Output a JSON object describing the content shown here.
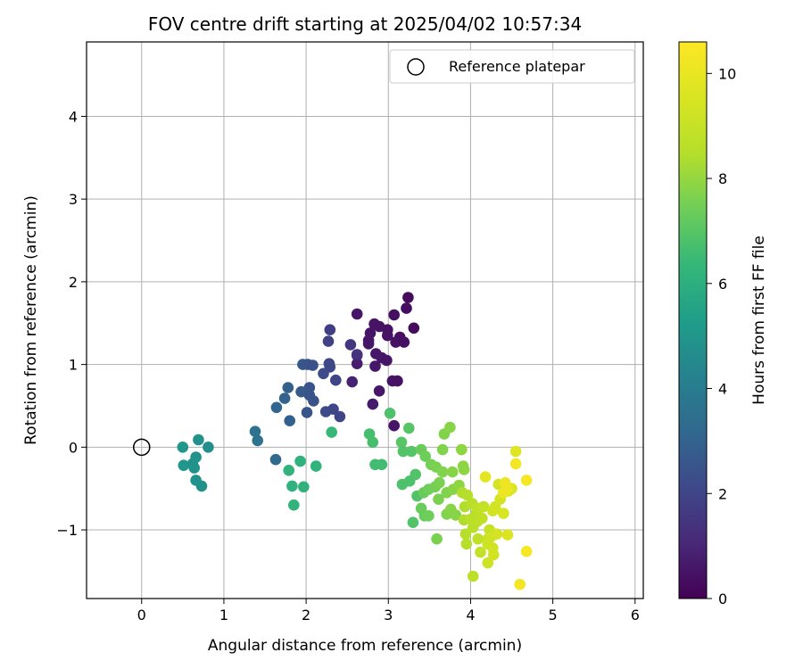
{
  "chart_data": {
    "type": "scatter",
    "title": "FOV centre drift starting at 2025/04/02 10:57:34",
    "xlabel": "Angular distance from reference (arcmin)",
    "ylabel": "Rotation from reference (arcmin)",
    "xlim": [
      -0.67,
      6.1
    ],
    "ylim": [
      -1.83,
      4.9
    ],
    "xticks": [
      0,
      1,
      2,
      3,
      4,
      5,
      6
    ],
    "yticks": [
      -1,
      0,
      1,
      2,
      3,
      4
    ],
    "grid": true,
    "legend": {
      "position": "top-right",
      "entries": [
        "Reference platepar"
      ]
    },
    "reference_point": {
      "label": "Reference platepar",
      "x": 0,
      "y": 0
    },
    "colorbar": {
      "label": "Hours from first FF file",
      "colormap": "viridis",
      "min": 0,
      "max": 10.6,
      "ticks": [
        0,
        2,
        4,
        6,
        8,
        10
      ]
    },
    "series": [
      {
        "points": [
          {
            "x": 3.24,
            "y": 1.81,
            "h": 0.3
          },
          {
            "x": 3.22,
            "y": 1.68,
            "h": 0.35
          },
          {
            "x": 3.07,
            "y": 1.6,
            "h": 0.4
          },
          {
            "x": 2.62,
            "y": 1.61,
            "h": 0.6
          },
          {
            "x": 3.31,
            "y": 1.44,
            "h": 0.3
          },
          {
            "x": 2.83,
            "y": 1.49,
            "h": 0.5
          },
          {
            "x": 2.89,
            "y": 1.46,
            "h": 0.5
          },
          {
            "x": 2.99,
            "y": 1.42,
            "h": 0.45
          },
          {
            "x": 2.78,
            "y": 1.38,
            "h": 0.55
          },
          {
            "x": 2.99,
            "y": 1.35,
            "h": 0.5
          },
          {
            "x": 3.14,
            "y": 1.33,
            "h": 0.4
          },
          {
            "x": 2.76,
            "y": 1.29,
            "h": 0.6
          },
          {
            "x": 3.09,
            "y": 1.27,
            "h": 0.45
          },
          {
            "x": 3.19,
            "y": 1.27,
            "h": 0.4
          },
          {
            "x": 2.85,
            "y": 1.13,
            "h": 0.6
          },
          {
            "x": 2.62,
            "y": 1.11,
            "h": 0.8
          },
          {
            "x": 2.92,
            "y": 1.08,
            "h": 0.6
          },
          {
            "x": 2.98,
            "y": 1.05,
            "h": 0.55
          },
          {
            "x": 2.62,
            "y": 1.01,
            "h": 0.8
          },
          {
            "x": 2.84,
            "y": 0.98,
            "h": 0.6
          },
          {
            "x": 3.05,
            "y": 0.8,
            "h": 0.5
          },
          {
            "x": 3.11,
            "y": 0.8,
            "h": 0.45
          },
          {
            "x": 2.56,
            "y": 0.79,
            "h": 0.9
          },
          {
            "x": 2.89,
            "y": 0.68,
            "h": 0.6
          },
          {
            "x": 2.81,
            "y": 0.52,
            "h": 0.7
          },
          {
            "x": 3.07,
            "y": 0.26,
            "h": 0.55
          },
          {
            "x": 2.76,
            "y": 1.25,
            "h": 0.6
          },
          {
            "x": 2.29,
            "y": 1.42,
            "h": 1.8
          },
          {
            "x": 2.27,
            "y": 1.28,
            "h": 1.9
          },
          {
            "x": 2.54,
            "y": 1.24,
            "h": 1.5
          },
          {
            "x": 2.62,
            "y": 1.12,
            "h": 1.4
          },
          {
            "x": 2.28,
            "y": 1.01,
            "h": 2.1
          },
          {
            "x": 2.29,
            "y": 0.97,
            "h": 2.1
          },
          {
            "x": 2.21,
            "y": 0.89,
            "h": 2.2
          },
          {
            "x": 2.36,
            "y": 0.81,
            "h": 2.0
          },
          {
            "x": 2.04,
            "y": 0.72,
            "h": 2.5
          },
          {
            "x": 1.96,
            "y": 1.0,
            "h": 2.6
          },
          {
            "x": 2.02,
            "y": 1.0,
            "h": 2.5
          },
          {
            "x": 2.08,
            "y": 0.99,
            "h": 2.4
          },
          {
            "x": 1.94,
            "y": 0.67,
            "h": 2.7
          },
          {
            "x": 2.09,
            "y": 0.56,
            "h": 2.4
          },
          {
            "x": 2.24,
            "y": 0.43,
            "h": 2.2
          },
          {
            "x": 2.33,
            "y": 0.46,
            "h": 2.1
          },
          {
            "x": 2.41,
            "y": 0.37,
            "h": 2.0
          },
          {
            "x": 2.01,
            "y": 0.42,
            "h": 2.5
          },
          {
            "x": 1.78,
            "y": 0.72,
            "h": 2.9
          },
          {
            "x": 1.74,
            "y": 0.59,
            "h": 3.0
          },
          {
            "x": 1.64,
            "y": 0.48,
            "h": 3.1
          },
          {
            "x": 1.8,
            "y": 0.32,
            "h": 2.9
          },
          {
            "x": 2.04,
            "y": 0.63,
            "h": 2.5
          },
          {
            "x": 1.38,
            "y": 0.19,
            "h": 3.6
          },
          {
            "x": 1.41,
            "y": 0.08,
            "h": 3.6
          },
          {
            "x": 1.63,
            "y": -0.15,
            "h": 3.3
          },
          {
            "x": 0.69,
            "y": 0.09,
            "h": 4.8
          },
          {
            "x": 0.5,
            "y": 0.0,
            "h": 5.0
          },
          {
            "x": 0.81,
            "y": 0.0,
            "h": 4.7
          },
          {
            "x": 0.66,
            "y": -0.12,
            "h": 4.9
          },
          {
            "x": 0.51,
            "y": -0.22,
            "h": 5.0
          },
          {
            "x": 0.62,
            "y": -0.2,
            "h": 4.9
          },
          {
            "x": 0.64,
            "y": -0.25,
            "h": 4.9
          },
          {
            "x": 0.66,
            "y": -0.4,
            "h": 4.9
          },
          {
            "x": 0.73,
            "y": -0.47,
            "h": 4.8
          },
          {
            "x": 1.79,
            "y": -0.28,
            "h": 6.2
          },
          {
            "x": 1.93,
            "y": -0.17,
            "h": 6.1
          },
          {
            "x": 2.12,
            "y": -0.23,
            "h": 6.2
          },
          {
            "x": 1.83,
            "y": -0.47,
            "h": 6.1
          },
          {
            "x": 1.97,
            "y": -0.48,
            "h": 6.1
          },
          {
            "x": 1.85,
            "y": -0.7,
            "h": 6.2
          },
          {
            "x": 2.31,
            "y": 0.18,
            "h": 6.4
          },
          {
            "x": 3.02,
            "y": 0.41,
            "h": 6.8
          },
          {
            "x": 2.77,
            "y": 0.16,
            "h": 6.7
          },
          {
            "x": 2.81,
            "y": 0.06,
            "h": 6.7
          },
          {
            "x": 2.84,
            "y": -0.21,
            "h": 6.6
          },
          {
            "x": 2.92,
            "y": -0.21,
            "h": 6.6
          },
          {
            "x": 3.25,
            "y": 0.23,
            "h": 7.0
          },
          {
            "x": 3.16,
            "y": 0.06,
            "h": 7.0
          },
          {
            "x": 3.18,
            "y": -0.05,
            "h": 6.9
          },
          {
            "x": 3.28,
            "y": -0.05,
            "h": 7.0
          },
          {
            "x": 3.17,
            "y": -0.45,
            "h": 6.8
          },
          {
            "x": 3.26,
            "y": -0.41,
            "h": 6.8
          },
          {
            "x": 3.33,
            "y": -0.33,
            "h": 6.9
          },
          {
            "x": 3.35,
            "y": -0.59,
            "h": 6.9
          },
          {
            "x": 3.3,
            "y": -0.91,
            "h": 6.9
          },
          {
            "x": 3.4,
            "y": -0.03,
            "h": 7.3
          },
          {
            "x": 3.45,
            "y": -0.11,
            "h": 7.4
          },
          {
            "x": 3.52,
            "y": -0.21,
            "h": 7.5
          },
          {
            "x": 3.58,
            "y": -0.24,
            "h": 7.6
          },
          {
            "x": 3.43,
            "y": -0.55,
            "h": 7.3
          },
          {
            "x": 3.49,
            "y": -0.51,
            "h": 7.4
          },
          {
            "x": 3.57,
            "y": -0.48,
            "h": 7.5
          },
          {
            "x": 3.62,
            "y": -0.43,
            "h": 7.6
          },
          {
            "x": 3.66,
            "y": -0.3,
            "h": 7.7
          },
          {
            "x": 3.68,
            "y": 0.16,
            "h": 7.7
          },
          {
            "x": 3.75,
            "y": 0.24,
            "h": 7.8
          },
          {
            "x": 3.66,
            "y": -0.03,
            "h": 7.7
          },
          {
            "x": 3.89,
            "y": -0.03,
            "h": 7.9
          },
          {
            "x": 3.78,
            "y": -0.3,
            "h": 7.8
          },
          {
            "x": 3.91,
            "y": -0.23,
            "h": 7.9
          },
          {
            "x": 3.92,
            "y": -0.27,
            "h": 7.9
          },
          {
            "x": 3.61,
            "y": -0.63,
            "h": 7.6
          },
          {
            "x": 3.71,
            "y": -0.55,
            "h": 7.7
          },
          {
            "x": 3.79,
            "y": -0.51,
            "h": 7.8
          },
          {
            "x": 3.86,
            "y": -0.46,
            "h": 7.9
          },
          {
            "x": 3.44,
            "y": -0.83,
            "h": 7.3
          },
          {
            "x": 3.49,
            "y": -0.83,
            "h": 7.4
          },
          {
            "x": 3.4,
            "y": -0.74,
            "h": 7.3
          },
          {
            "x": 3.71,
            "y": -0.81,
            "h": 7.7
          },
          {
            "x": 3.76,
            "y": -0.75,
            "h": 7.8
          },
          {
            "x": 3.59,
            "y": -1.11,
            "h": 7.6
          },
          {
            "x": 3.82,
            "y": -0.82,
            "h": 7.8
          },
          {
            "x": 3.9,
            "y": -0.55,
            "h": 8.4
          },
          {
            "x": 3.96,
            "y": -0.58,
            "h": 8.5
          },
          {
            "x": 3.93,
            "y": -0.72,
            "h": 8.4
          },
          {
            "x": 4.02,
            "y": -0.68,
            "h": 8.6
          },
          {
            "x": 3.92,
            "y": -0.88,
            "h": 8.4
          },
          {
            "x": 4.0,
            "y": -0.87,
            "h": 8.6
          },
          {
            "x": 4.07,
            "y": -0.79,
            "h": 8.7
          },
          {
            "x": 4.1,
            "y": -0.74,
            "h": 8.8
          },
          {
            "x": 3.94,
            "y": -1.05,
            "h": 8.5
          },
          {
            "x": 3.95,
            "y": -1.17,
            "h": 8.5
          },
          {
            "x": 4.03,
            "y": -0.97,
            "h": 8.6
          },
          {
            "x": 4.08,
            "y": -0.9,
            "h": 8.7
          },
          {
            "x": 4.14,
            "y": -0.86,
            "h": 8.8
          },
          {
            "x": 4.16,
            "y": -0.72,
            "h": 8.9
          },
          {
            "x": 4.09,
            "y": -1.11,
            "h": 8.8
          },
          {
            "x": 4.12,
            "y": -1.27,
            "h": 8.9
          },
          {
            "x": 4.03,
            "y": -1.56,
            "h": 8.7
          },
          {
            "x": 4.21,
            "y": -1.11,
            "h": 9.0
          },
          {
            "x": 4.23,
            "y": -1.0,
            "h": 9.0
          },
          {
            "x": 4.27,
            "y": -0.77,
            "h": 9.3
          },
          {
            "x": 4.3,
            "y": -0.72,
            "h": 9.3
          },
          {
            "x": 4.36,
            "y": -0.63,
            "h": 9.4
          },
          {
            "x": 4.4,
            "y": -0.8,
            "h": 9.5
          },
          {
            "x": 4.24,
            "y": -1.09,
            "h": 9.2
          },
          {
            "x": 4.27,
            "y": -1.22,
            "h": 9.3
          },
          {
            "x": 4.21,
            "y": -1.4,
            "h": 9.2
          },
          {
            "x": 4.28,
            "y": -1.3,
            "h": 9.3
          },
          {
            "x": 4.32,
            "y": -1.05,
            "h": 9.4
          },
          {
            "x": 4.21,
            "y": -1.17,
            "h": 9.2
          },
          {
            "x": 4.45,
            "y": -1.06,
            "h": 9.6
          },
          {
            "x": 4.55,
            "y": -0.05,
            "h": 9.7
          },
          {
            "x": 4.34,
            "y": -0.45,
            "h": 9.4
          },
          {
            "x": 4.46,
            "y": -0.53,
            "h": 9.6
          },
          {
            "x": 4.5,
            "y": -0.5,
            "h": 9.6
          },
          {
            "x": 4.18,
            "y": -0.36,
            "h": 9.9
          },
          {
            "x": 4.55,
            "y": -0.2,
            "h": 10.3
          },
          {
            "x": 4.42,
            "y": -0.43,
            "h": 10.1
          },
          {
            "x": 4.44,
            "y": -0.5,
            "h": 10.2
          },
          {
            "x": 4.68,
            "y": -0.4,
            "h": 10.4
          },
          {
            "x": 4.68,
            "y": -1.26,
            "h": 10.4
          },
          {
            "x": 4.6,
            "y": -1.66,
            "h": 10.3
          },
          {
            "x": 4.4,
            "y": -0.55,
            "h": 10.1
          }
        ]
      }
    ]
  }
}
